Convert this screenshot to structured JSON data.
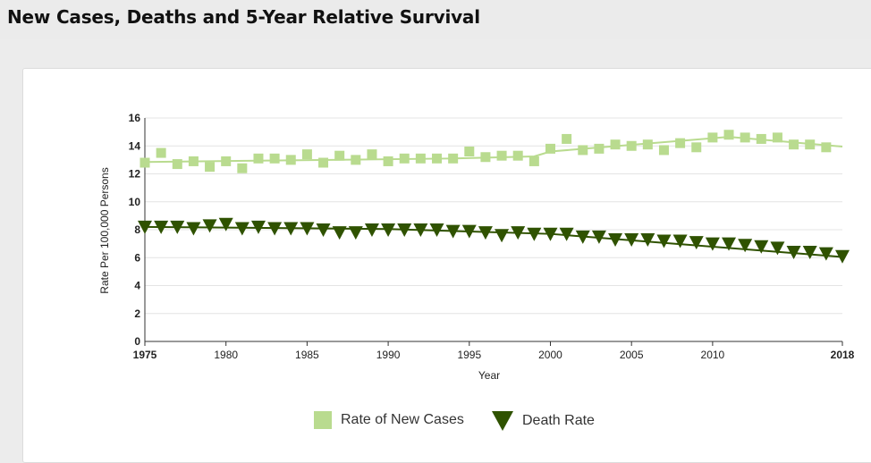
{
  "header": {
    "title": "New Cases, Deaths and 5-Year Relative Survival"
  },
  "colors": {
    "new_cases": "#b9db8f",
    "death_rate": "#2f5200",
    "grid": "#e4e4e4",
    "axis": "#333333"
  },
  "chart_data": {
    "type": "scatter",
    "xlabel": "Year",
    "ylabel": "Rate Per 100,000 Persons",
    "xlim": [
      1975,
      2018
    ],
    "ylim": [
      0,
      16
    ],
    "yticks": [
      "0",
      "2",
      "4",
      "6",
      "8",
      "10",
      "12",
      "14",
      "16"
    ],
    "xticks": [
      "1975",
      "1980",
      "1985",
      "1990",
      "1995",
      "2000",
      "2005",
      "2010",
      "2018"
    ],
    "grid": true,
    "legend_position": "bottom",
    "x": [
      1975,
      1976,
      1977,
      1978,
      1979,
      1980,
      1981,
      1982,
      1983,
      1984,
      1985,
      1986,
      1987,
      1988,
      1989,
      1990,
      1991,
      1992,
      1993,
      1994,
      1995,
      1996,
      1997,
      1998,
      1999,
      2000,
      2001,
      2002,
      2003,
      2004,
      2005,
      2006,
      2007,
      2008,
      2009,
      2010,
      2011,
      2012,
      2013,
      2014,
      2015,
      2016,
      2017,
      2018
    ],
    "series": [
      {
        "name": "Rate of New Cases",
        "marker": "square",
        "values": [
          12.8,
          13.5,
          12.7,
          12.9,
          12.5,
          12.9,
          12.4,
          13.1,
          13.1,
          13.0,
          13.4,
          12.8,
          13.3,
          13.0,
          13.4,
          12.9,
          13.1,
          13.1,
          13.1,
          13.1,
          13.6,
          13.2,
          13.3,
          13.3,
          12.9,
          13.8,
          14.5,
          13.7,
          13.8,
          14.1,
          14.0,
          14.1,
          13.7,
          14.2,
          13.9,
          14.6,
          14.8,
          14.6,
          14.5,
          14.6,
          14.1,
          14.1,
          13.9,
          null
        ],
        "trend": [
          [
            1975,
            12.85
          ],
          [
            1994,
            13.1
          ],
          [
            1999,
            13.25
          ],
          [
            2000,
            13.6
          ],
          [
            2011,
            14.65
          ],
          [
            2018,
            13.95
          ]
        ]
      },
      {
        "name": "Death Rate",
        "marker": "triangle-down",
        "values": [
          8.2,
          8.2,
          8.2,
          8.1,
          8.3,
          8.4,
          8.1,
          8.2,
          8.1,
          8.1,
          8.1,
          8.0,
          7.8,
          7.8,
          8.0,
          8.0,
          8.0,
          8.0,
          8.0,
          7.9,
          7.9,
          7.8,
          7.6,
          7.8,
          7.7,
          7.7,
          7.7,
          7.5,
          7.5,
          7.3,
          7.3,
          7.3,
          7.2,
          7.2,
          7.1,
          7.0,
          7.0,
          6.9,
          6.8,
          6.7,
          6.4,
          6.4,
          6.3,
          6.1
        ],
        "trend": [
          [
            1975,
            8.2
          ],
          [
            1990,
            8.05
          ],
          [
            2000,
            7.7
          ],
          [
            2018,
            6.05
          ]
        ]
      }
    ]
  }
}
